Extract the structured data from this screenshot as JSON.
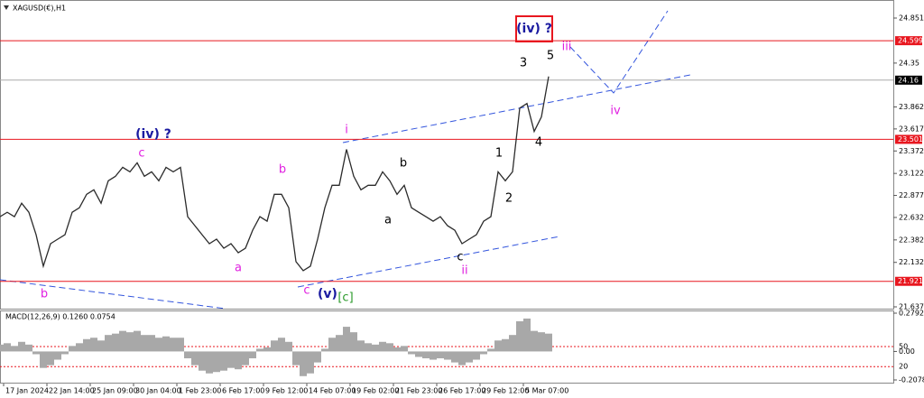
{
  "chart_data": {
    "type": "line",
    "title": "XAGUSD(€),H1",
    "color": "#2b2b2b",
    "xlim": [
      0,
      124
    ],
    "ylim": [
      21.617,
      25.052
    ],
    "xticks": [
      {
        "value": 0.5,
        "label": "17 Jan 2024"
      },
      {
        "value": 6.5,
        "label": "22 Jan 14:00"
      },
      {
        "value": 12.5,
        "label": "25 Jan 09:00"
      },
      {
        "value": 18.5,
        "label": "30 Jan 04:00"
      },
      {
        "value": 24.5,
        "label": "1 Feb 23:00"
      },
      {
        "value": 30.5,
        "label": "6 Feb 17:00"
      },
      {
        "value": 36.5,
        "label": "9 Feb 12:00"
      },
      {
        "value": 42.5,
        "label": "14 Feb 07:00"
      },
      {
        "value": 48.5,
        "label": "19 Feb 02:00"
      },
      {
        "value": 54.5,
        "label": "21 Feb 23:00"
      },
      {
        "value": 60.5,
        "label": "26 Feb 17:00"
      },
      {
        "value": 66.5,
        "label": "29 Feb 12:00"
      },
      {
        "value": 72.5,
        "label": "5 Mar 07:00"
      }
    ],
    "yticks": [
      24.851,
      24.35,
      23.862,
      23.617,
      23.372,
      23.122,
      22.877,
      22.632,
      22.382,
      22.132,
      21.637
    ],
    "levels": [
      {
        "value": 24.599,
        "color": "#e8171f"
      },
      {
        "value": 24.16,
        "color": "#000000"
      },
      {
        "value": 23.501,
        "color": "#e8171f"
      },
      {
        "value": 21.921,
        "color": "#e8171f"
      }
    ],
    "x": [
      0,
      1,
      2,
      3,
      4,
      5,
      6,
      7,
      8,
      9,
      10,
      11,
      12,
      13,
      14,
      15,
      16,
      17,
      18,
      19,
      20,
      21,
      22,
      23,
      24,
      25,
      26,
      27,
      28,
      29,
      30,
      31,
      32,
      33,
      34,
      35,
      36,
      37,
      38,
      39,
      40,
      41,
      42,
      43,
      44,
      45,
      46,
      47,
      48,
      49,
      50,
      51,
      52,
      53,
      54,
      55,
      56,
      57,
      58,
      59,
      60,
      61,
      62,
      63,
      64,
      65,
      66,
      67,
      68,
      69,
      70,
      71,
      72,
      73,
      74,
      75,
      76
    ],
    "values": [
      22.64,
      22.69,
      22.64,
      22.79,
      22.69,
      22.44,
      22.09,
      22.34,
      22.39,
      22.44,
      22.69,
      22.74,
      22.89,
      22.94,
      22.79,
      23.04,
      23.09,
      23.19,
      23.14,
      23.24,
      23.09,
      23.14,
      23.04,
      23.19,
      23.14,
      23.19,
      22.64,
      22.54,
      22.44,
      22.34,
      22.39,
      22.29,
      22.34,
      22.24,
      22.29,
      22.49,
      22.64,
      22.59,
      22.89,
      22.89,
      22.74,
      22.14,
      22.04,
      22.09,
      22.39,
      22.74,
      22.99,
      22.99,
      23.39,
      23.09,
      22.94,
      22.99,
      22.99,
      23.14,
      23.04,
      22.89,
      22.99,
      22.74,
      22.69,
      22.64,
      22.59,
      22.64,
      22.54,
      22.49,
      22.34,
      22.39,
      22.44,
      22.59,
      22.64,
      23.14,
      23.04,
      23.14,
      23.85,
      23.9,
      23.59,
      23.75,
      24.2
    ],
    "annotations": [
      {
        "text": "(iv) ?",
        "color": "#1a1aa0"
      },
      {
        "text": "iii",
        "color": "#e020e0"
      },
      {
        "text": "3",
        "color": "#000000"
      },
      {
        "text": "5",
        "color": "#000000"
      },
      {
        "text": "4",
        "color": "#000000"
      },
      {
        "text": "1",
        "color": "#000000"
      },
      {
        "text": "2",
        "color": "#000000"
      },
      {
        "text": "iv",
        "color": "#e020e0"
      },
      {
        "text": "i",
        "color": "#e020e0"
      },
      {
        "text": "b",
        "color": "#000000"
      },
      {
        "text": "a",
        "color": "#000000"
      },
      {
        "text": "c",
        "color": "#000000"
      },
      {
        "text": "ii",
        "color": "#e020e0"
      },
      {
        "text": "(iv) ?",
        "color": "#1a1aa0"
      },
      {
        "text": "c",
        "color": "#e020e0"
      },
      {
        "text": "b",
        "color": "#e020e0"
      },
      {
        "text": "a",
        "color": "#e020e0"
      },
      {
        "text": "b",
        "color": "#e020e0"
      },
      {
        "text": "c",
        "color": "#e020e0"
      },
      {
        "text": "(v)",
        "color": "#1a1aa0"
      },
      {
        "text": "[c]",
        "color": "#2a9a2a"
      }
    ],
    "macd": {
      "title": "MACD(12,26,9) 0.1260 0.0754",
      "color": "#a8a8a8",
      "ylim": [
        -0.2078,
        0.2792
      ],
      "yticks": [
        0.2792,
        {
          "value": 0,
          "label": "0.00"
        },
        -0.2078
      ],
      "y2lim": [
        0,
        100
      ],
      "y2ticks": [
        50,
        20
      ],
      "values": [
        0.05,
        0.06,
        0.04,
        0.07,
        0.05,
        -0.02,
        -0.12,
        -0.1,
        -0.06,
        -0.02,
        0.04,
        0.06,
        0.09,
        0.1,
        0.08,
        0.12,
        0.13,
        0.15,
        0.14,
        0.15,
        0.12,
        0.12,
        0.1,
        0.11,
        0.1,
        0.1,
        -0.05,
        -0.1,
        -0.14,
        -0.16,
        -0.15,
        -0.14,
        -0.12,
        -0.13,
        -0.1,
        -0.05,
        0.02,
        0.03,
        0.08,
        0.1,
        0.07,
        -0.1,
        -0.18,
        -0.16,
        -0.08,
        0.02,
        0.1,
        0.12,
        0.18,
        0.14,
        0.08,
        0.06,
        0.05,
        0.07,
        0.06,
        0.03,
        0.04,
        -0.02,
        -0.04,
        -0.05,
        -0.06,
        -0.05,
        -0.06,
        -0.08,
        -0.1,
        -0.08,
        -0.06,
        -0.02,
        0.02,
        0.08,
        0.09,
        0.12,
        0.22,
        0.24,
        0.15,
        0.14,
        0.13
      ]
    }
  }
}
